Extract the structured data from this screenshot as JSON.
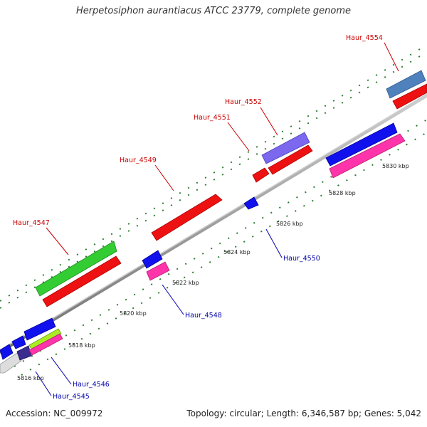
{
  "title": "Herpetosiphon aurantiacus ATCC 23779, complete genome",
  "accession": "Accession: NC_009972",
  "summary": "Topology: circular; Length: 6,346,587 bp; Genes: 5,042",
  "colors": {
    "forward_label": "#cc0000",
    "reverse_label": "#0000aa",
    "backbone": "#888888",
    "ticks": "#2e7d32"
  },
  "scale_labels": [
    "5816 kbp",
    "5818 kbp",
    "5820 kbp",
    "5822 kbp",
    "5824 kbp",
    "5826 kbp",
    "5828 kbp",
    "5830 kbp"
  ],
  "gene_labels": {
    "forward": [
      "Haur_4547",
      "Haur_4549",
      "Haur_4551",
      "Haur_4552",
      "Haur_4554"
    ],
    "reverse": [
      "Haur_4545",
      "Haur_4546",
      "Haur_4548",
      "Haur_4550"
    ]
  }
}
